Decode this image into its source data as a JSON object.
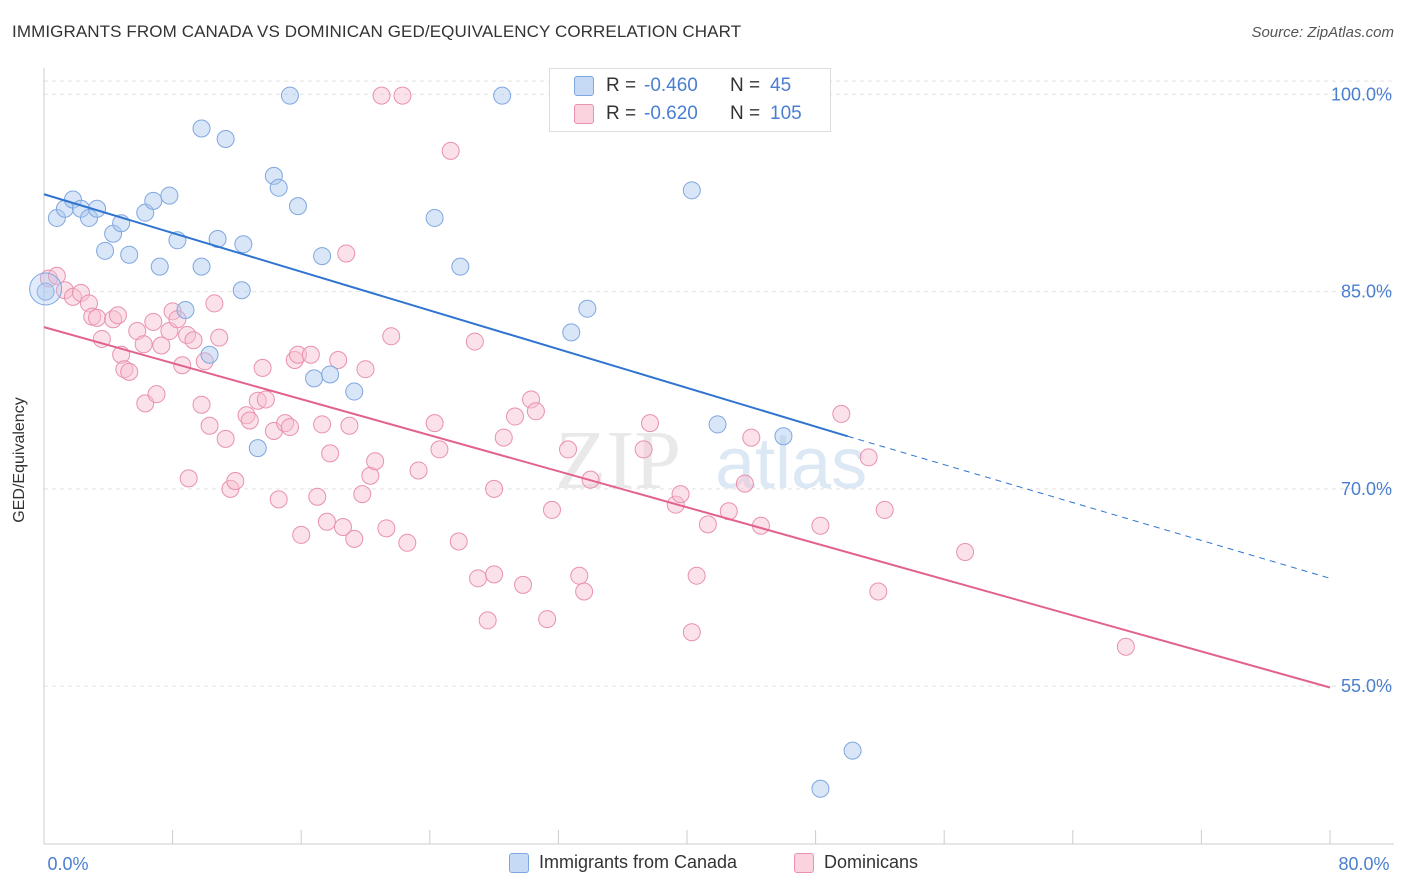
{
  "title": "IMMIGRANTS FROM CANADA VS DOMINICAN GED/EQUIVALENCY CORRELATION CHART",
  "source": "Source: ZipAtlas.com",
  "watermark": {
    "zip": "ZIP",
    "atlas": "atlas"
  },
  "colors": {
    "blue": "#7fa7e0",
    "blue_fill": "#aac8f0",
    "pink": "#e991ad",
    "pink_fill": "#f7bfd0",
    "blue_line": "#2f74d0",
    "pink_line": "#e2628e",
    "tick_text": "#4a7fd0"
  },
  "legend": {
    "rows": [
      {
        "r_label": "R =",
        "r_value": "-0.460",
        "n_label": "N =",
        "n_value": "45"
      },
      {
        "r_label": "R =",
        "r_value": "-0.620",
        "n_label": "N =",
        "n_value": "105"
      }
    ]
  },
  "chart_data": {
    "type": "scatter",
    "title": "IMMIGRANTS FROM CANADA VS DOMINICAN GED/EQUIVALENCY CORRELATION CHART",
    "xlabel": "",
    "ylabel": "GED/Equivalency",
    "xlim": [
      0,
      80
    ],
    "ylim": [
      43,
      102
    ],
    "x_tick_labels": [
      "0.0%",
      "80.0%"
    ],
    "y_ticks": [
      55,
      70,
      85,
      100
    ],
    "y_tick_labels": [
      "55.0%",
      "70.0%",
      "85.0%",
      "100.0%"
    ],
    "grid": true,
    "legend_position": "top-center",
    "series": [
      {
        "name": "Immigrants from Canada",
        "color": "#7fa7e0",
        "r": -0.46,
        "n": 45,
        "trend": {
          "x0": 0,
          "y0": 92.4,
          "x1": 50,
          "y1": 74.0,
          "dashed_to_x": 80,
          "dashed_to_y": 63.2
        },
        "points": [
          [
            0.1,
            85.0
          ],
          [
            0.8,
            90.6
          ],
          [
            1.3,
            91.3
          ],
          [
            1.8,
            92.0
          ],
          [
            2.3,
            91.3
          ],
          [
            2.8,
            90.6
          ],
          [
            3.3,
            91.3
          ],
          [
            3.8,
            88.1
          ],
          [
            4.3,
            89.4
          ],
          [
            4.8,
            90.2
          ],
          [
            5.3,
            87.8
          ],
          [
            6.3,
            91.0
          ],
          [
            6.8,
            91.9
          ],
          [
            7.2,
            86.9
          ],
          [
            7.8,
            92.3
          ],
          [
            8.3,
            88.9
          ],
          [
            8.8,
            83.6
          ],
          [
            9.8,
            97.4
          ],
          [
            9.8,
            86.9
          ],
          [
            10.3,
            80.2
          ],
          [
            10.8,
            89.0
          ],
          [
            11.3,
            96.6
          ],
          [
            12.3,
            85.1
          ],
          [
            12.4,
            88.6
          ],
          [
            13.3,
            73.1
          ],
          [
            14.3,
            93.8
          ],
          [
            14.6,
            92.9
          ],
          [
            15.3,
            99.9
          ],
          [
            15.8,
            91.5
          ],
          [
            16.8,
            78.4
          ],
          [
            17.3,
            87.7
          ],
          [
            17.8,
            78.7
          ],
          [
            19.3,
            77.4
          ],
          [
            24.3,
            90.6
          ],
          [
            25.9,
            86.9
          ],
          [
            28.5,
            99.9
          ],
          [
            32.3,
            99.8
          ],
          [
            32.8,
            81.9
          ],
          [
            33.8,
            83.7
          ],
          [
            40.3,
            92.7
          ],
          [
            41.9,
            74.9
          ],
          [
            50.3,
            50.1
          ],
          [
            48.3,
            47.2
          ],
          [
            34.8,
            100.1
          ],
          [
            46.0,
            74.0
          ]
        ]
      },
      {
        "name": "Dominicans",
        "color": "#e991ad",
        "r": -0.62,
        "n": 105,
        "trend": {
          "x0": 0,
          "y0": 82.3,
          "x1": 80,
          "y1": 54.9
        },
        "points": [
          [
            0.3,
            86.0
          ],
          [
            0.8,
            86.2
          ],
          [
            1.3,
            85.1
          ],
          [
            1.8,
            84.6
          ],
          [
            2.3,
            84.9
          ],
          [
            2.8,
            84.1
          ],
          [
            3.0,
            83.1
          ],
          [
            3.3,
            83.0
          ],
          [
            3.6,
            81.4
          ],
          [
            4.3,
            82.9
          ],
          [
            4.6,
            83.2
          ],
          [
            4.8,
            80.2
          ],
          [
            5.0,
            79.1
          ],
          [
            5.3,
            78.9
          ],
          [
            5.8,
            82.0
          ],
          [
            6.2,
            81.0
          ],
          [
            6.3,
            76.5
          ],
          [
            6.8,
            82.7
          ],
          [
            7.0,
            77.2
          ],
          [
            7.3,
            80.9
          ],
          [
            7.8,
            82.0
          ],
          [
            8.0,
            83.5
          ],
          [
            8.3,
            82.9
          ],
          [
            8.6,
            79.4
          ],
          [
            8.9,
            81.7
          ],
          [
            9.3,
            81.3
          ],
          [
            9.8,
            76.4
          ],
          [
            10.0,
            79.7
          ],
          [
            10.3,
            74.8
          ],
          [
            10.6,
            84.1
          ],
          [
            10.9,
            81.5
          ],
          [
            11.3,
            73.8
          ],
          [
            11.6,
            70.0
          ],
          [
            11.9,
            70.6
          ],
          [
            12.6,
            75.6
          ],
          [
            12.8,
            75.2
          ],
          [
            13.3,
            76.7
          ],
          [
            13.6,
            79.2
          ],
          [
            13.8,
            76.8
          ],
          [
            14.3,
            74.4
          ],
          [
            14.6,
            69.2
          ],
          [
            15.0,
            75.0
          ],
          [
            15.3,
            74.7
          ],
          [
            15.6,
            79.8
          ],
          [
            15.8,
            80.2
          ],
          [
            16.0,
            66.5
          ],
          [
            16.6,
            80.2
          ],
          [
            17.0,
            69.4
          ],
          [
            17.3,
            74.9
          ],
          [
            17.6,
            67.5
          ],
          [
            17.8,
            72.7
          ],
          [
            18.3,
            79.8
          ],
          [
            18.6,
            67.1
          ],
          [
            18.8,
            87.9
          ],
          [
            19.0,
            74.8
          ],
          [
            19.3,
            66.2
          ],
          [
            19.8,
            69.6
          ],
          [
            20.0,
            79.1
          ],
          [
            20.3,
            71.0
          ],
          [
            20.6,
            72.1
          ],
          [
            21.0,
            99.9
          ],
          [
            21.3,
            67.0
          ],
          [
            21.6,
            81.6
          ],
          [
            22.3,
            99.9
          ],
          [
            22.6,
            65.9
          ],
          [
            23.3,
            71.4
          ],
          [
            24.3,
            75.0
          ],
          [
            24.6,
            73.0
          ],
          [
            25.3,
            95.7
          ],
          [
            25.8,
            66.0
          ],
          [
            26.8,
            81.2
          ],
          [
            27.0,
            63.2
          ],
          [
            27.6,
            60.0
          ],
          [
            28.0,
            63.5
          ],
          [
            28.6,
            73.9
          ],
          [
            29.3,
            75.5
          ],
          [
            29.8,
            62.7
          ],
          [
            30.3,
            76.8
          ],
          [
            30.6,
            75.9
          ],
          [
            31.3,
            60.1
          ],
          [
            31.6,
            68.4
          ],
          [
            32.6,
            73.0
          ],
          [
            33.3,
            63.4
          ],
          [
            33.6,
            62.2
          ],
          [
            34.0,
            70.7
          ],
          [
            37.7,
            75.0
          ],
          [
            39.3,
            68.8
          ],
          [
            39.6,
            69.6
          ],
          [
            40.3,
            59.1
          ],
          [
            40.6,
            63.4
          ],
          [
            41.3,
            67.3
          ],
          [
            42.6,
            68.3
          ],
          [
            43.6,
            70.4
          ],
          [
            44.0,
            73.9
          ],
          [
            44.6,
            67.2
          ],
          [
            48.3,
            67.2
          ],
          [
            49.6,
            75.7
          ],
          [
            51.3,
            72.4
          ],
          [
            51.9,
            62.2
          ],
          [
            52.3,
            68.4
          ],
          [
            57.3,
            65.2
          ],
          [
            67.3,
            58.0
          ],
          [
            37.3,
            73.0
          ],
          [
            28.0,
            70.0
          ],
          [
            9.0,
            70.8
          ]
        ]
      }
    ]
  }
}
